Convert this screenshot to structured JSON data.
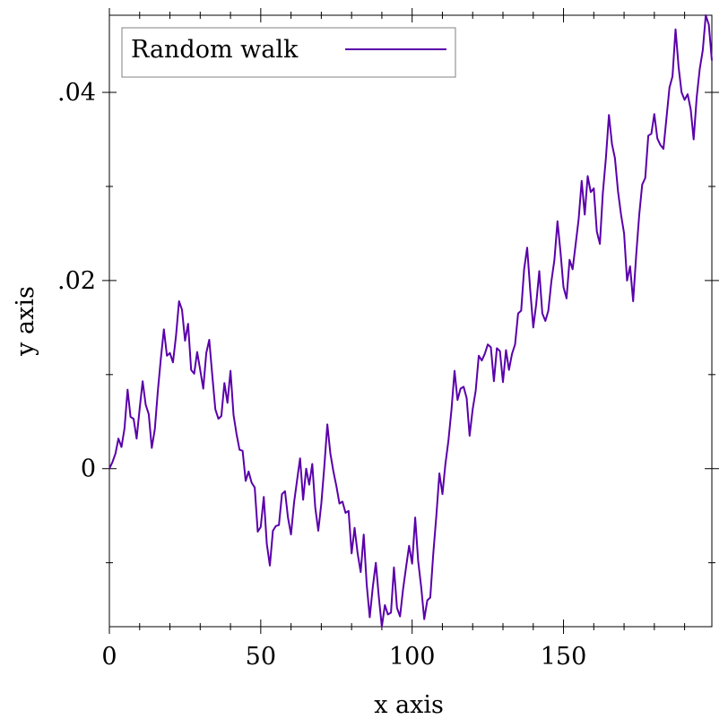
{
  "chart_data": {
    "type": "line",
    "title": "",
    "xlabel": "x axis",
    "ylabel": "y axis",
    "xlim": [
      0,
      199
    ],
    "ylim": [
      -0.0168,
      0.0482
    ],
    "xticks": [
      0,
      50,
      100,
      150
    ],
    "xtick_labels": [
      "0",
      "50",
      "100",
      "150"
    ],
    "yticks": [
      0,
      0.02,
      0.04
    ],
    "ytick_labels": [
      "0",
      ".02",
      ".04"
    ],
    "grid": false,
    "legend_position": "top-left",
    "series": [
      {
        "name": "Random walk",
        "color": "#5a00aa",
        "x": [
          0,
          1,
          2,
          3,
          4,
          5,
          6,
          7,
          8,
          9,
          10,
          11,
          12,
          13,
          14,
          15,
          16,
          17,
          18,
          19,
          20,
          21,
          22,
          23,
          24,
          25,
          26,
          27,
          28,
          29,
          30,
          31,
          32,
          33,
          34,
          35,
          36,
          37,
          38,
          39,
          40,
          41,
          42,
          43,
          44,
          45,
          46,
          47,
          48,
          49,
          50,
          51,
          52,
          53,
          54,
          55,
          56,
          57,
          58,
          59,
          60,
          61,
          62,
          63,
          64,
          65,
          66,
          67,
          68,
          69,
          70,
          71,
          72,
          73,
          74,
          75,
          76,
          77,
          78,
          79,
          80,
          81,
          82,
          83,
          84,
          85,
          86,
          87,
          88,
          89,
          90,
          91,
          92,
          93,
          94,
          95,
          96,
          97,
          98,
          99,
          100,
          101,
          102,
          103,
          104,
          105,
          106,
          107,
          108,
          109,
          110,
          111,
          112,
          113,
          114,
          115,
          116,
          117,
          118,
          119,
          120,
          121,
          122,
          123,
          124,
          125,
          126,
          127,
          128,
          129,
          130,
          131,
          132,
          133,
          134,
          135,
          136,
          137,
          138,
          139,
          140,
          141,
          142,
          143,
          144,
          145,
          146,
          147,
          148,
          149,
          150,
          151,
          152,
          153,
          154,
          155,
          156,
          157,
          158,
          159,
          160,
          161,
          162,
          163,
          164,
          165,
          166,
          167,
          168,
          169,
          170,
          171,
          172,
          173,
          174,
          175,
          176,
          177,
          178,
          179,
          180,
          181,
          182,
          183,
          184,
          185,
          186,
          187,
          188,
          189,
          190,
          191,
          192,
          193,
          194,
          195,
          196,
          197,
          198,
          199
        ],
        "values": [
          0.0,
          0.0007,
          0.0016,
          0.0032,
          0.0023,
          0.0043,
          0.0084,
          0.0055,
          0.0053,
          0.0032,
          0.0064,
          0.0093,
          0.0068,
          0.0058,
          0.0022,
          0.0042,
          0.0082,
          0.0117,
          0.0148,
          0.012,
          0.0123,
          0.0113,
          0.0141,
          0.0178,
          0.0169,
          0.0136,
          0.0154,
          0.0105,
          0.0101,
          0.0124,
          0.0105,
          0.0085,
          0.0123,
          0.0137,
          0.0099,
          0.0063,
          0.0053,
          0.0056,
          0.0091,
          0.007,
          0.0104,
          0.0057,
          0.0037,
          0.002,
          0.0019,
          -0.0013,
          -0.0003,
          -0.0015,
          -0.002,
          -0.0067,
          -0.0062,
          -0.003,
          -0.008,
          -0.0103,
          -0.0066,
          -0.0061,
          -0.006,
          -0.0027,
          -0.0024,
          -0.0052,
          -0.007,
          -0.0036,
          -0.0012,
          0.0011,
          -0.0033,
          0.0,
          -0.0017,
          0.0005,
          -0.0041,
          -0.0066,
          -0.0037,
          0.0003,
          0.0047,
          0.0016,
          -0.0003,
          -0.0019,
          -0.0037,
          -0.0035,
          -0.0047,
          -0.0045,
          -0.009,
          -0.0063,
          -0.009,
          -0.011,
          -0.007,
          -0.0123,
          -0.0158,
          -0.0126,
          -0.01,
          -0.0136,
          -0.0168,
          -0.0145,
          -0.0155,
          -0.0153,
          -0.0105,
          -0.0148,
          -0.0157,
          -0.0128,
          -0.0105,
          -0.0082,
          -0.0101,
          -0.0052,
          -0.0098,
          -0.0126,
          -0.016,
          -0.014,
          -0.0137,
          -0.009,
          -0.005,
          -0.0005,
          -0.0027,
          0.0005,
          0.003,
          0.0063,
          0.0104,
          0.0073,
          0.0085,
          0.0087,
          0.0075,
          0.0035,
          0.0063,
          0.0083,
          0.012,
          0.0115,
          0.0122,
          0.0132,
          0.0129,
          0.0093,
          0.0128,
          0.0125,
          0.0092,
          0.0126,
          0.0105,
          0.0122,
          0.0132,
          0.0165,
          0.0168,
          0.0212,
          0.0235,
          0.019,
          0.015,
          0.0175,
          0.021,
          0.0165,
          0.0157,
          0.0168,
          0.0199,
          0.0222,
          0.0263,
          0.023,
          0.0193,
          0.0181,
          0.0222,
          0.0212,
          0.0238,
          0.0265,
          0.0306,
          0.027,
          0.0311,
          0.0294,
          0.0298,
          0.0252,
          0.0239,
          0.0293,
          0.033,
          0.0376,
          0.0345,
          0.033,
          0.0295,
          0.027,
          0.025,
          0.02,
          0.0215,
          0.0178,
          0.0227,
          0.027,
          0.0302,
          0.0309,
          0.0354,
          0.0356,
          0.0377,
          0.0351,
          0.0344,
          0.034,
          0.0372,
          0.0405,
          0.0417,
          0.0467,
          0.0427,
          0.04,
          0.0392,
          0.0398,
          0.0382,
          0.035,
          0.0395,
          0.0425,
          0.0445,
          0.0482,
          0.0472,
          0.0434
        ]
      }
    ]
  }
}
